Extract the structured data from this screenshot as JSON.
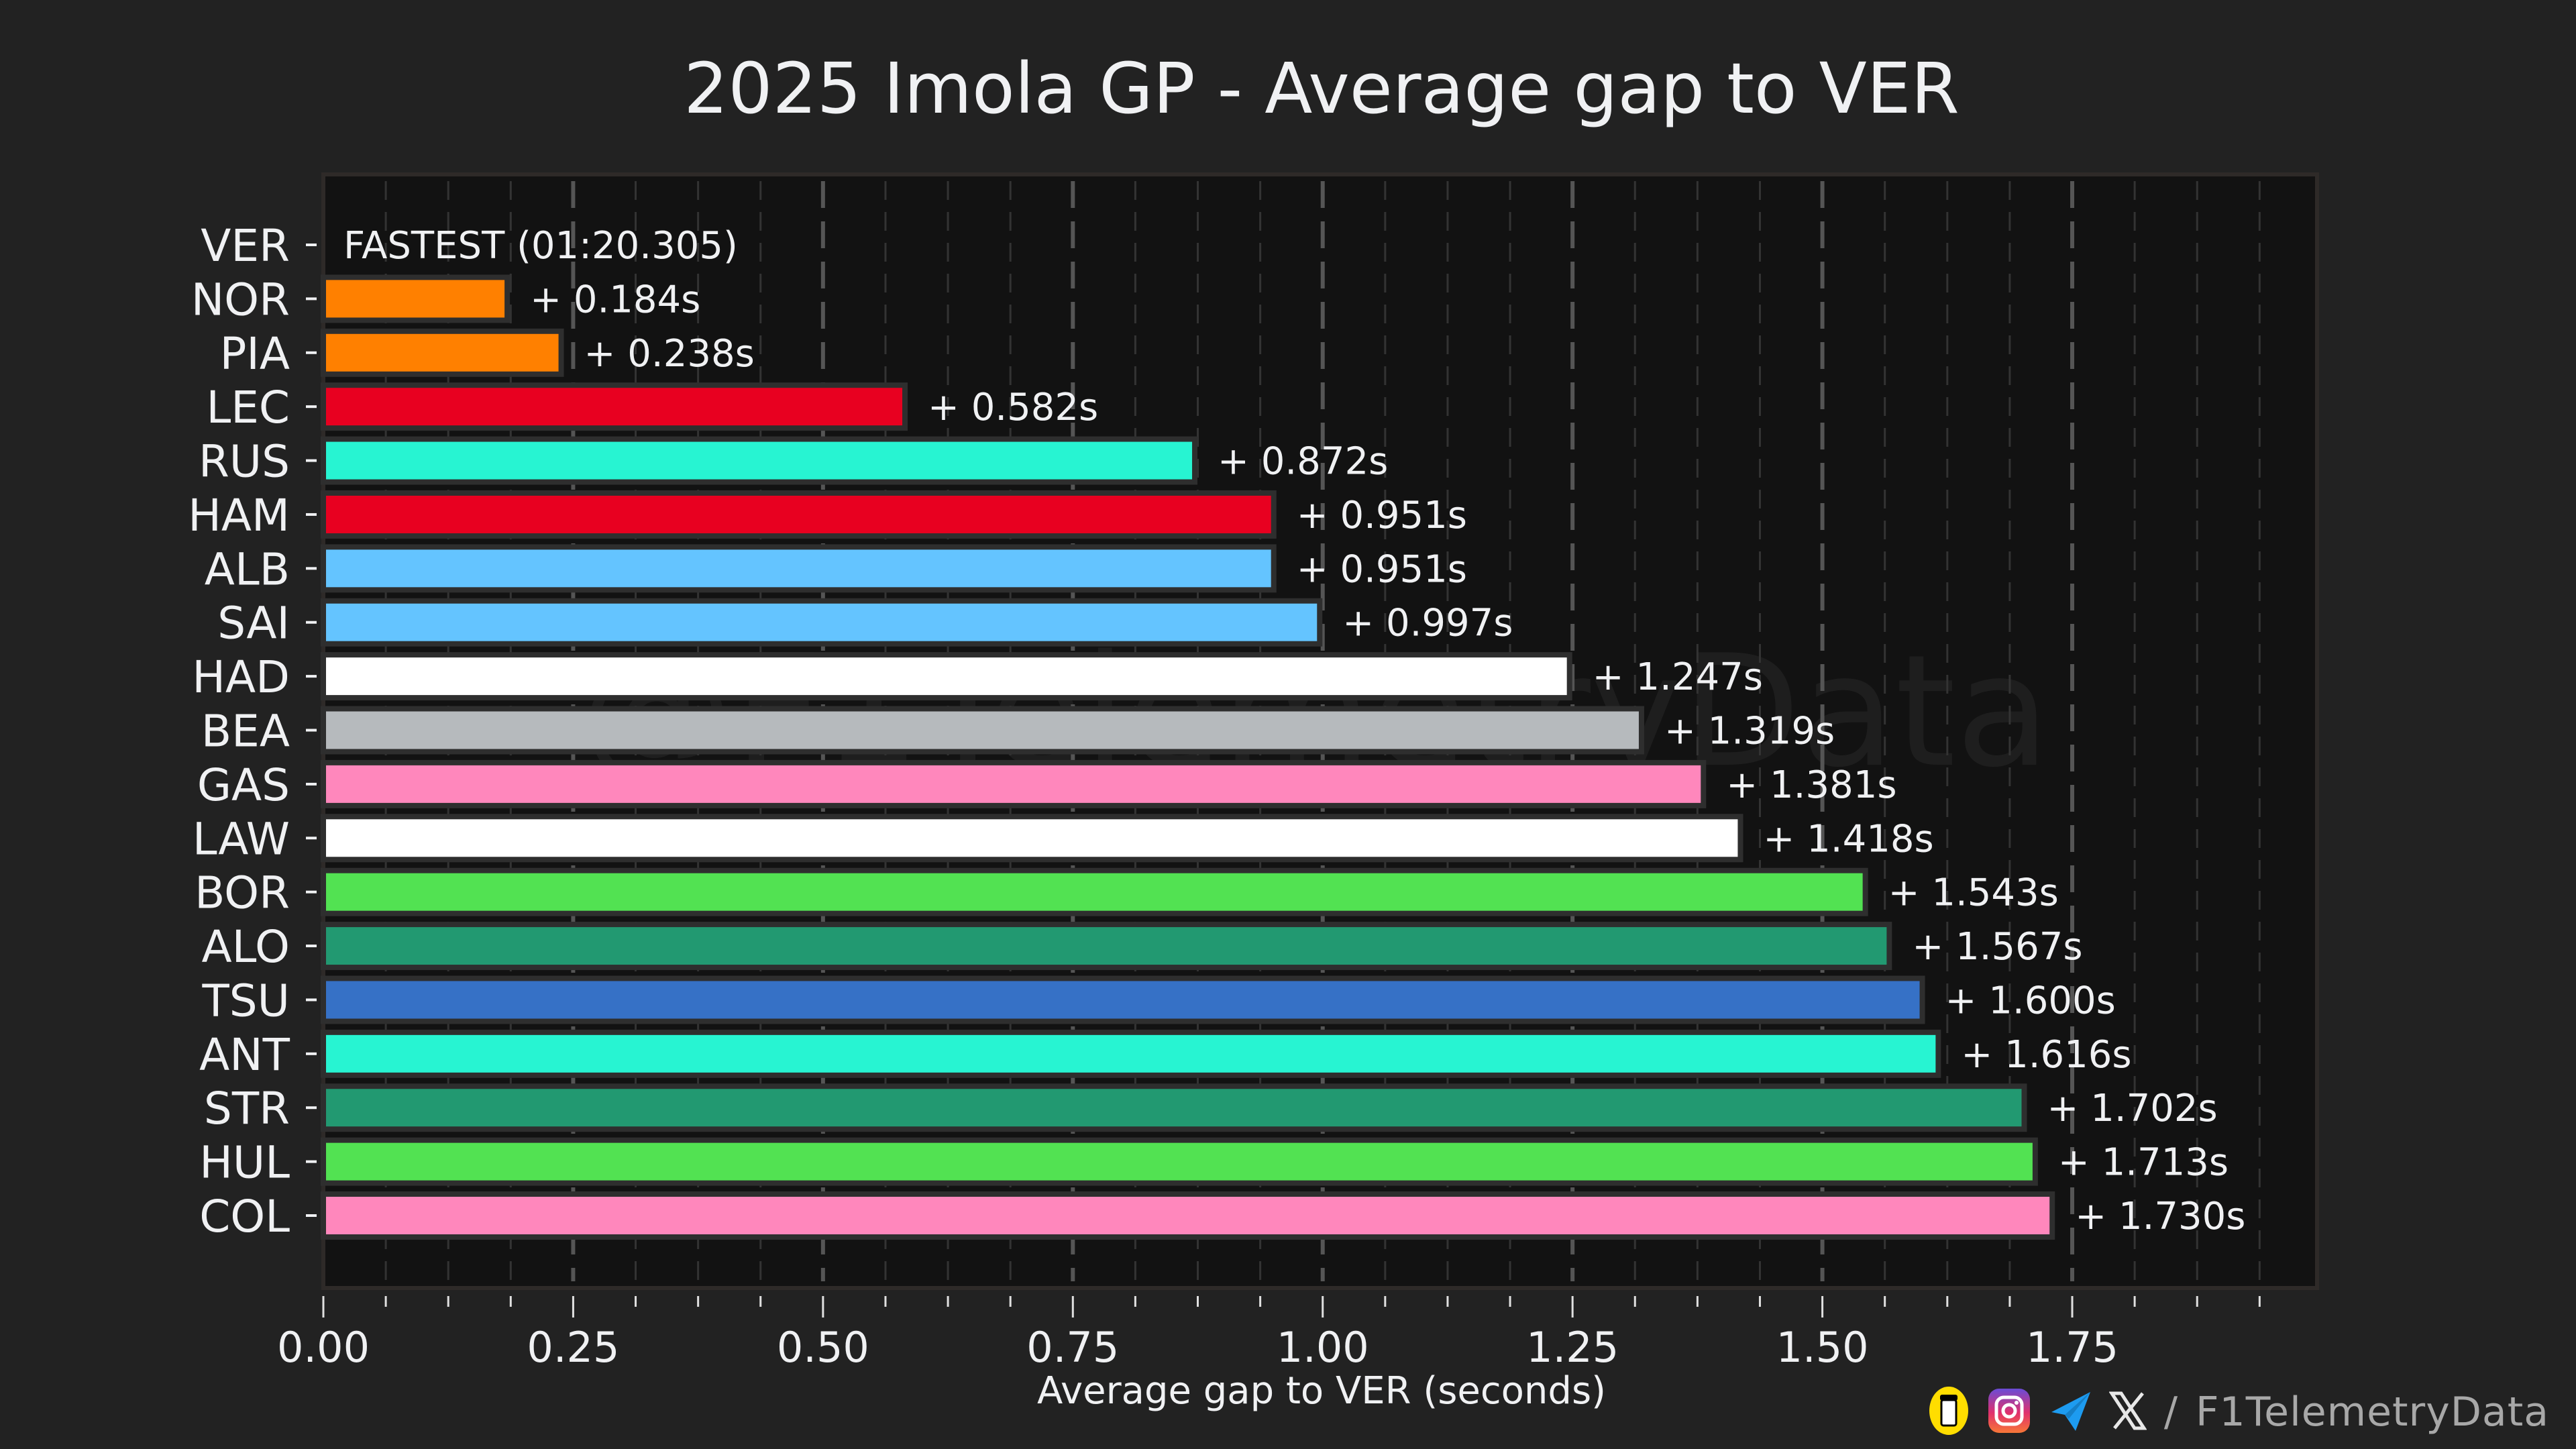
{
  "chart_data": {
    "type": "bar",
    "orientation": "horizontal",
    "title": "2025 Imola GP - Average gap to VER",
    "xlabel": "Average gap to VER (seconds)",
    "ylabel": "",
    "xlim": [
      0,
      1.995
    ],
    "xticks": [
      0.0,
      0.25,
      0.5,
      0.75,
      1.0,
      1.25,
      1.5,
      1.75
    ],
    "xtick_labels": [
      "0.00",
      "0.25",
      "0.50",
      "0.75",
      "1.00",
      "1.25",
      "1.50",
      "1.75"
    ],
    "minor_tick_step": 0.0625,
    "grid": true,
    "categories": [
      "VER",
      "NOR",
      "PIA",
      "LEC",
      "RUS",
      "HAM",
      "ALB",
      "SAI",
      "HAD",
      "BEA",
      "GAS",
      "LAW",
      "BOR",
      "ALO",
      "TSU",
      "ANT",
      "STR",
      "HUL",
      "COL"
    ],
    "values": [
      0.0,
      0.184,
      0.238,
      0.582,
      0.872,
      0.951,
      0.951,
      0.997,
      1.247,
      1.319,
      1.381,
      1.418,
      1.543,
      1.567,
      1.6,
      1.616,
      1.702,
      1.713,
      1.73
    ],
    "data_labels": [
      "FASTEST (01:20.305)",
      "+ 0.184s",
      "+ 0.238s",
      "+ 0.582s",
      "+ 0.872s",
      "+ 0.951s",
      "+ 0.951s",
      "+ 0.997s",
      "+ 1.247s",
      "+ 1.319s",
      "+ 1.381s",
      "+ 1.418s",
      "+ 1.543s",
      "+ 1.567s",
      "+ 1.600s",
      "+ 1.616s",
      "+ 1.702s",
      "+ 1.713s",
      "+ 1.730s"
    ],
    "colors": [
      "#1e41ff",
      "#ff8000",
      "#ff8000",
      "#e80020",
      "#27f4d2",
      "#e80020",
      "#64c4ff",
      "#64c4ff",
      "#ffffff",
      "#b6babd",
      "#ff87bc",
      "#ffffff",
      "#52e252",
      "#229971",
      "#3671c6",
      "#27f4d2",
      "#229971",
      "#52e252",
      "#ff87bc"
    ],
    "fastest_lap": "01:20.305",
    "watermark": "@F1TelemetryData"
  },
  "theme": {
    "background": "#222222",
    "plot_background": "#121212",
    "text": "#f0f1f3",
    "bar_edge": "#2e2e2e",
    "grid_major": "#555555",
    "grid_minor": "#333333"
  },
  "footer": {
    "icons": [
      "buymeacoffee-icon",
      "instagram-icon",
      "telegram-icon",
      "x-icon"
    ],
    "separator": "/",
    "handle": "F1TelemetryData"
  }
}
